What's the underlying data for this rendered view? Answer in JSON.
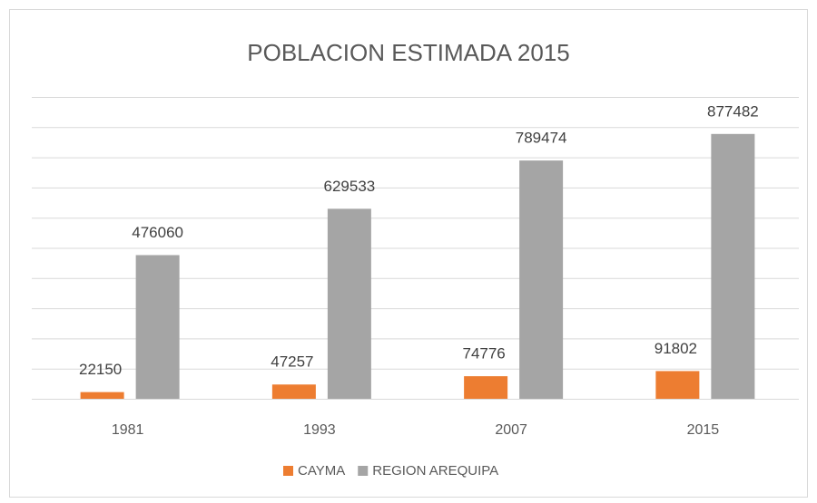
{
  "chart_data": {
    "type": "bar",
    "title": "POBLACION ESTIMADA 2015",
    "categories": [
      "1981",
      "1993",
      "2007",
      "2015"
    ],
    "series": [
      {
        "name": "CAYMA",
        "color": "#ed7d31",
        "values": [
          22150,
          47257,
          74776,
          91802
        ]
      },
      {
        "name": "REGION AREQUIPA",
        "color": "#a5a5a5",
        "values": [
          476060,
          629533,
          789474,
          877482
        ]
      }
    ],
    "ylim": [
      0,
      1000000
    ],
    "yticks": [
      0,
      100000,
      200000,
      300000,
      400000,
      500000,
      600000,
      700000,
      800000,
      900000,
      1000000
    ],
    "grid": true,
    "legend": "bottom"
  }
}
